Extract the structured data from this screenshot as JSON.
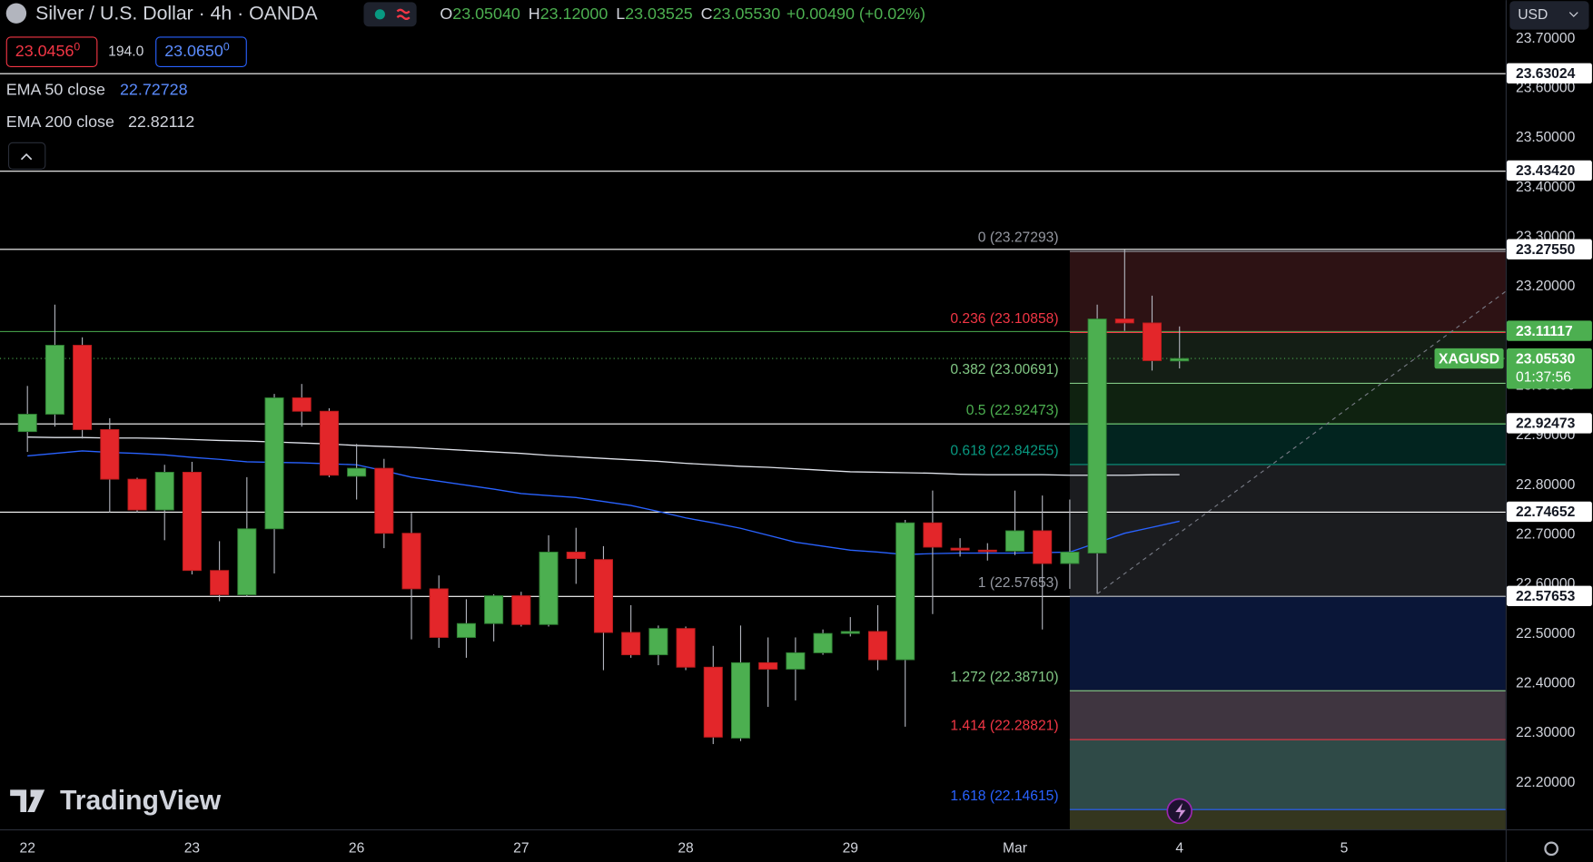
{
  "header": {
    "title": "Silver / U.S. Dollar · 4h · OANDA",
    "ohlc": [
      {
        "label": "O",
        "value": "23.05040"
      },
      {
        "label": "H",
        "value": "23.12000"
      },
      {
        "label": "L",
        "value": "23.03525"
      },
      {
        "label": "C",
        "value": "23.05530"
      }
    ],
    "change": "+0.00490 (+0.02%)",
    "bid": "23.0456",
    "bid_sup": "0",
    "spread": "194.0",
    "ask": "23.0650",
    "ask_sup": "0",
    "currency": "USD",
    "brand": "TradingView"
  },
  "chart_data": {
    "type": "candlestick",
    "open": [
      22.908,
      22.943,
      23.082,
      22.912,
      22.812,
      22.75,
      22.826,
      22.628,
      22.579,
      22.712,
      22.976,
      22.949,
      22.818,
      22.834,
      22.703,
      22.591,
      22.493,
      22.521,
      22.577,
      22.519,
      22.665,
      22.65,
      22.503,
      22.458,
      22.511,
      22.433,
      22.29,
      22.442,
      22.429,
      22.462,
      22.501,
      22.505,
      22.448,
      22.724,
      22.673,
      22.669,
      22.667,
      22.708,
      22.642,
      22.663,
      23.135,
      23.127,
      23.0504
    ],
    "high": [
      23.0,
      23.164,
      23.098,
      22.935,
      22.815,
      22.841,
      22.847,
      22.687,
      22.816,
      22.984,
      23.004,
      22.955,
      22.883,
      22.853,
      22.744,
      22.618,
      22.57,
      22.58,
      22.585,
      22.699,
      22.714,
      22.677,
      22.558,
      22.517,
      22.515,
      22.476,
      22.517,
      22.493,
      22.493,
      22.509,
      22.534,
      22.558,
      22.73,
      22.789,
      22.693,
      22.683,
      22.789,
      22.779,
      22.771,
      23.164,
      23.274,
      23.182,
      23.12
    ],
    "low": [
      22.867,
      22.918,
      22.894,
      22.745,
      22.745,
      22.689,
      22.62,
      22.566,
      22.575,
      22.622,
      22.918,
      22.816,
      22.771,
      22.673,
      22.489,
      22.472,
      22.452,
      22.485,
      22.515,
      22.515,
      22.601,
      22.427,
      22.452,
      22.437,
      22.427,
      22.278,
      22.284,
      22.353,
      22.366,
      22.458,
      22.495,
      22.427,
      22.313,
      22.54,
      22.656,
      22.648,
      22.659,
      22.509,
      22.591,
      22.581,
      23.111,
      23.031,
      23.03525
    ],
    "close": [
      22.943,
      23.082,
      22.912,
      22.812,
      22.75,
      22.826,
      22.628,
      22.579,
      22.712,
      22.976,
      22.949,
      22.82,
      22.834,
      22.703,
      22.591,
      22.493,
      22.521,
      22.577,
      22.519,
      22.665,
      22.652,
      22.503,
      22.458,
      22.511,
      22.433,
      22.292,
      22.442,
      22.429,
      22.462,
      22.501,
      22.505,
      22.448,
      22.724,
      22.675,
      22.669,
      22.667,
      22.708,
      22.642,
      22.665,
      23.135,
      23.127,
      23.051,
      23.0553
    ],
    "up_color": "#4caf50",
    "down_color": "#e3262a",
    "wick_color": "#b2b5be",
    "series": [
      {
        "name": "EMA 50 close",
        "color": "#2962ff",
        "values": [
          22.859,
          22.864,
          22.869,
          22.866,
          22.864,
          22.861,
          22.856,
          22.852,
          22.847,
          22.846,
          22.845,
          22.843,
          22.841,
          22.829,
          22.816,
          22.808,
          22.8,
          22.792,
          22.783,
          22.779,
          22.775,
          22.767,
          22.759,
          22.747,
          22.734,
          22.724,
          22.713,
          22.699,
          22.685,
          22.677,
          22.669,
          22.665,
          22.66,
          22.662,
          22.663,
          22.663,
          22.663,
          22.664,
          22.665,
          22.684,
          22.703,
          22.715,
          22.72728
        ]
      },
      {
        "name": "EMA 200 close",
        "color": "#e0e3eb",
        "values": [
          22.897,
          22.896,
          22.896,
          22.895,
          22.895,
          22.894,
          22.892,
          22.89,
          22.889,
          22.887,
          22.885,
          22.883,
          22.88,
          22.878,
          22.876,
          22.873,
          22.87,
          22.867,
          22.864,
          22.86,
          22.857,
          22.854,
          22.851,
          22.848,
          22.844,
          22.841,
          22.838,
          22.836,
          22.833,
          22.83,
          22.827,
          22.826,
          22.825,
          22.824,
          22.822,
          22.821,
          22.821,
          22.821,
          22.82,
          22.82,
          22.82,
          22.821,
          22.82112
        ]
      }
    ],
    "xlim": [
      -1,
      53.889
    ],
    "ylim": [
      22.106,
      23.7778
    ],
    "xticks": [
      {
        "value": 0,
        "label": "22"
      },
      {
        "value": 6,
        "label": "23"
      },
      {
        "value": 12,
        "label": "26"
      },
      {
        "value": 18,
        "label": "27"
      },
      {
        "value": 24,
        "label": "28"
      },
      {
        "value": 30,
        "label": "29"
      },
      {
        "value": 36,
        "label": "Mar"
      },
      {
        "value": 42,
        "label": "4"
      },
      {
        "value": 48,
        "label": "5"
      }
    ],
    "yticks": [
      {
        "value": 23.7,
        "label": "23.70000"
      },
      {
        "value": 23.6,
        "label": "23.60000"
      },
      {
        "value": 23.5,
        "label": "23.50000"
      },
      {
        "value": 23.4,
        "label": "23.40000"
      },
      {
        "value": 23.3,
        "label": "23.30000"
      },
      {
        "value": 23.2,
        "label": "23.20000"
      },
      {
        "value": 23.1,
        "label": "23.10000"
      },
      {
        "value": 23.0,
        "label": "23.00000"
      },
      {
        "value": 22.9,
        "label": "22.90000"
      },
      {
        "value": 22.8,
        "label": "22.80000"
      },
      {
        "value": 22.7,
        "label": "22.70000"
      },
      {
        "value": 22.6,
        "label": "22.60000"
      },
      {
        "value": 22.5,
        "label": "22.50000"
      },
      {
        "value": 22.4,
        "label": "22.40000"
      },
      {
        "value": 22.3,
        "label": "22.30000"
      },
      {
        "value": 22.2,
        "label": "22.20000"
      }
    ],
    "price_lines": [
      {
        "value": 23.63024,
        "color": "#ffffff"
      },
      {
        "value": 23.4342,
        "label": "23.43420",
        "color": "#ffffff"
      },
      {
        "value": 23.2755,
        "label": "23.27550",
        "color": "#ffffff"
      },
      {
        "value": 23.11117,
        "color": "#4caf50"
      },
      {
        "value": 22.92473,
        "color": "#ffffff"
      },
      {
        "value": 22.74652,
        "color": "#ffffff"
      },
      {
        "value": 22.57653,
        "color": "#ffffff"
      }
    ],
    "fib_start": 38,
    "fib_levels": [
      {
        "label": "0 (23.27293)",
        "value": 23.27293,
        "color": "#9598a1"
      },
      {
        "label": "0.236 (23.10858)",
        "value": 23.10858,
        "color": "#f23645",
        "fill": "#2d1214"
      },
      {
        "label": "0.382 (23.00691)",
        "value": 23.00691,
        "color": "#81c784",
        "fill": "#141e15"
      },
      {
        "label": "0.5 (22.92473)",
        "value": 22.92473,
        "color": "#4caf50",
        "fill": "#0f2210"
      },
      {
        "label": "0.618 (22.84255)",
        "value": 22.84255,
        "color": "#089981",
        "fill": "#02241f"
      },
      {
        "label": "1 (22.57653)",
        "value": 22.57653,
        "color": "#9598a1",
        "fill": "#1b1c1f"
      },
      {
        "label": "1.272 (22.38710)",
        "value": 22.3871,
        "color": "#81c784",
        "fill": "#0a1638"
      },
      {
        "label": "1.414 (22.28821)",
        "value": 22.28821,
        "color": "#f23645",
        "fill": "#3f3540"
      },
      {
        "label": "1.618 (22.14615)",
        "value": 22.14615,
        "color": "#2962ff",
        "fill": "#2f4a47"
      }
    ],
    "fib_tail_fill": "#34361f",
    "last_price": {
      "symbol": "XAGUSD",
      "label": "23.05530",
      "countdown": "01:37:56",
      "color": "#4caf50"
    }
  }
}
